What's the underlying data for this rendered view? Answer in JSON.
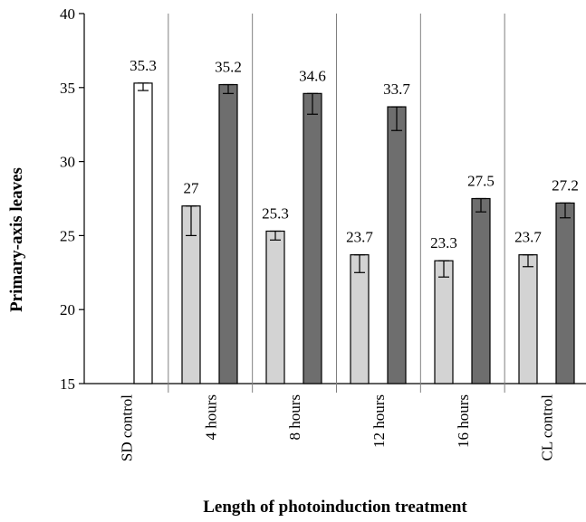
{
  "chart_data": {
    "type": "bar",
    "xlabel": "Length of photoinduction treatment",
    "ylabel": "Primary-axis leaves",
    "ylim": [
      15,
      40
    ],
    "yticks": [
      15,
      20,
      25,
      30,
      35,
      40
    ],
    "grid": false,
    "categories": [
      "SD control",
      "4 hours",
      "8 hours",
      "12 hours",
      "16 hours",
      "CL control"
    ],
    "series": [
      {
        "fill": "#ffffff",
        "values": [
          35.3,
          null,
          null,
          null,
          null,
          null
        ],
        "labels": [
          "35.3",
          "",
          "",
          "",
          "",
          ""
        ],
        "err_low": [
          34.8,
          null,
          null,
          null,
          null,
          null
        ],
        "err_high": [
          35.3,
          null,
          null,
          null,
          null,
          null
        ]
      },
      {
        "fill": "#d3d3d3",
        "values": [
          null,
          27,
          25.3,
          23.7,
          23.3,
          23.7
        ],
        "labels": [
          "",
          "27",
          "25.3",
          "23.7",
          "23.3",
          "23.7"
        ],
        "err_low": [
          null,
          25.0,
          24.7,
          22.5,
          22.2,
          22.9
        ],
        "err_high": [
          null,
          27.0,
          25.3,
          23.7,
          23.3,
          23.7
        ]
      },
      {
        "fill": "#6e6e6e",
        "values": [
          35.3,
          35.2,
          34.6,
          33.7,
          27.5,
          27.2
        ],
        "labels": [
          "",
          "35.2",
          "34.6",
          "33.7",
          "27.5",
          "27.2"
        ],
        "err_low": [
          null,
          34.6,
          33.2,
          32.1,
          26.6,
          26.2
        ],
        "err_high": [
          null,
          35.2,
          34.6,
          33.7,
          27.5,
          27.2
        ]
      }
    ]
  }
}
